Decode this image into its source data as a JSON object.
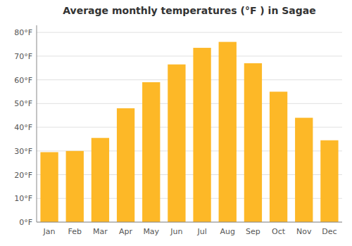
{
  "chart_data": {
    "type": "bar",
    "title": "Average monthly temperatures (°F ) in Sagae",
    "categories": [
      "Jan",
      "Feb",
      "Mar",
      "Apr",
      "May",
      "Jun",
      "Jul",
      "Aug",
      "Sep",
      "Oct",
      "Nov",
      "Dec"
    ],
    "values": [
      29.5,
      30.0,
      35.5,
      48.0,
      59.0,
      66.5,
      73.5,
      76.0,
      67.0,
      55.0,
      44.0,
      34.5
    ],
    "color": "#FDB827",
    "ylim": [
      0,
      83
    ],
    "yticks": [
      {
        "value": 0,
        "label": "0°F"
      },
      {
        "value": 10,
        "label": "10°F"
      },
      {
        "value": 20,
        "label": "20°F"
      },
      {
        "value": 30,
        "label": "30°F"
      },
      {
        "value": 40,
        "label": "40°F"
      },
      {
        "value": 50,
        "label": "50°F"
      },
      {
        "value": 60,
        "label": "60°F"
      },
      {
        "value": 70,
        "label": "70°F"
      },
      {
        "value": 80,
        "label": "80°F"
      }
    ],
    "grid": true
  }
}
